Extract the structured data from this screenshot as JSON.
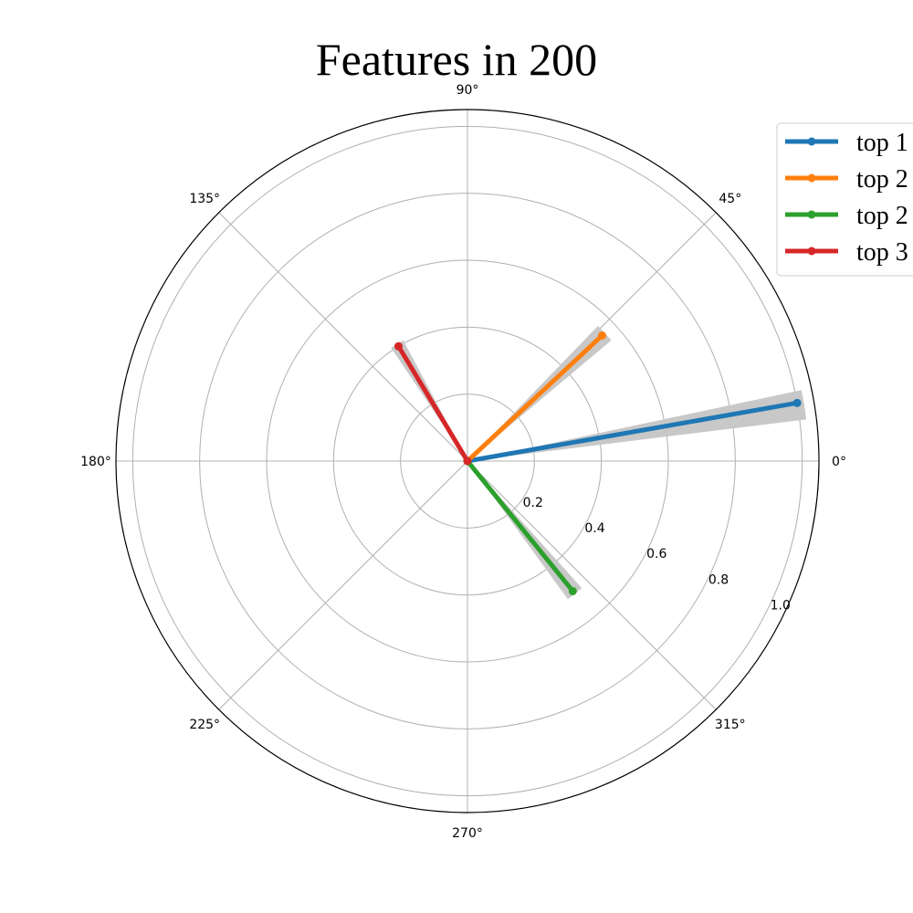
{
  "chart_data": {
    "type": "line",
    "subtype": "polar",
    "title": "Features in 200",
    "theta_ticks": [
      "0°",
      "45°",
      "90°",
      "135°",
      "180°",
      "225°",
      "270°",
      "315°"
    ],
    "r_ticks": [
      "0.2",
      "0.4",
      "0.6",
      "0.8",
      "1.0"
    ],
    "rlim": [
      0,
      1.05
    ],
    "grid": true,
    "legend_position": "top-right",
    "shading_color": "#c8c8c8",
    "series": [
      {
        "name": "top 1",
        "color": "#1f77b4",
        "angle_deg": 10,
        "r": 1.0,
        "band_deg": [
          7,
          12
        ]
      },
      {
        "name": "top 2",
        "color": "#ff7f0e",
        "angle_deg": 43,
        "r": 0.55,
        "band_deg": [
          40,
          46
        ]
      },
      {
        "name": "top 2",
        "color": "#2ca02c",
        "angle_deg": 309,
        "r": 0.5,
        "band_deg": [
          306,
          312
        ]
      },
      {
        "name": "top 3",
        "color": "#d62728",
        "angle_deg": 121,
        "r": 0.4,
        "band_deg": [
          118,
          124
        ]
      }
    ]
  }
}
